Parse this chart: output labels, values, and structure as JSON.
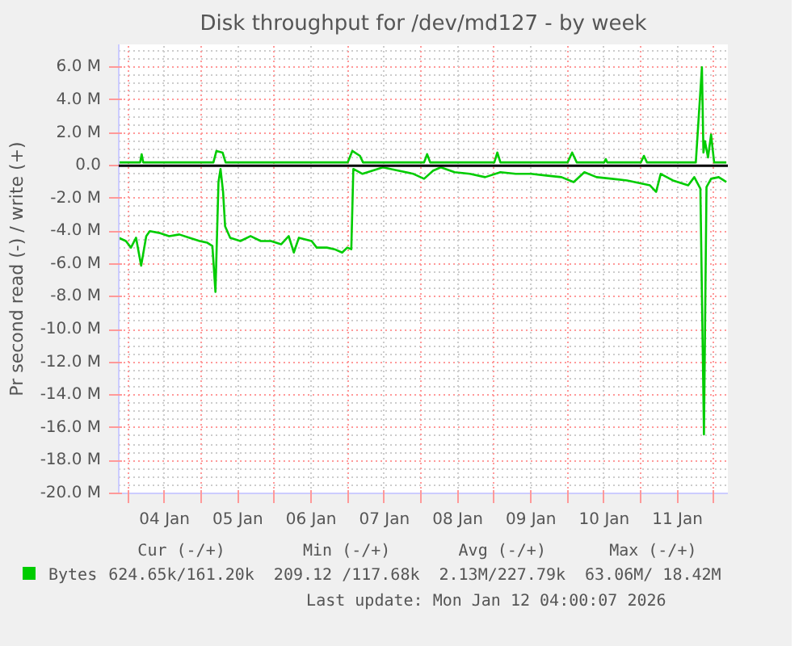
{
  "chart_data": {
    "type": "line",
    "title": "Disk throughput for /dev/md127 - by week",
    "ylabel": "Pr second read (-) / write (+)",
    "xlim": [
      "2026-01-03T21:00",
      "2026-01-12T04:30"
    ],
    "xticks": [
      {
        "value": "2026-01-04T00:00",
        "label": null
      },
      {
        "value": "2026-01-04T12:00",
        "label": "04 Jan"
      },
      {
        "value": "2026-01-05T00:00",
        "label": null
      },
      {
        "value": "2026-01-05T12:00",
        "label": "05 Jan"
      },
      {
        "value": "2026-01-06T00:00",
        "label": null
      },
      {
        "value": "2026-01-06T12:00",
        "label": "06 Jan"
      },
      {
        "value": "2026-01-07T00:00",
        "label": null
      },
      {
        "value": "2026-01-07T12:00",
        "label": "07 Jan"
      },
      {
        "value": "2026-01-08T00:00",
        "label": null
      },
      {
        "value": "2026-01-08T12:00",
        "label": "08 Jan"
      },
      {
        "value": "2026-01-09T00:00",
        "label": null
      },
      {
        "value": "2026-01-09T12:00",
        "label": "09 Jan"
      },
      {
        "value": "2026-01-10T00:00",
        "label": null
      },
      {
        "value": "2026-01-10T12:00",
        "label": "10 Jan"
      },
      {
        "value": "2026-01-11T00:00",
        "label": null
      },
      {
        "value": "2026-01-11T12:00",
        "label": "11 Jan"
      },
      {
        "value": "2026-01-12T00:00",
        "label": null
      }
    ],
    "ylim": [
      -20,
      7.4
    ],
    "yticks": [
      {
        "value": -20,
        "label": "-20.0 M"
      },
      {
        "value": -18,
        "label": "-18.0 M"
      },
      {
        "value": -16,
        "label": "-16.0 M"
      },
      {
        "value": -14,
        "label": "-14.0 M"
      },
      {
        "value": -12,
        "label": "-12.0 M"
      },
      {
        "value": -10,
        "label": "-10.0 M"
      },
      {
        "value": -8,
        "label": "-8.0 M"
      },
      {
        "value": -6,
        "label": "-6.0 M"
      },
      {
        "value": -4,
        "label": "-4.0 M"
      },
      {
        "value": -2,
        "label": "-2.0 M"
      },
      {
        "value": 0,
        "label": "0.0"
      },
      {
        "value": 2,
        "label": "2.0 M"
      },
      {
        "value": 4,
        "label": "4.0 M"
      },
      {
        "value": 6,
        "label": "6.0 M"
      }
    ],
    "grid": true,
    "legend": "bottom",
    "marker": "none",
    "line_style": "solid",
    "ref_lines": [
      {
        "axis": "y",
        "value": 0,
        "color": "#000000"
      }
    ],
    "series": [
      {
        "color": "#00cc00",
        "x": [
          "2026-01-03T21:00",
          "2026-01-03T23:20",
          "2026-01-04T01:00",
          "2026-01-04T02:40",
          "2026-01-04T04:20",
          "2026-01-04T06:00",
          "2026-01-04T07:10",
          "2026-01-04T10:10",
          "2026-01-04T13:30",
          "2026-01-04T16:50",
          "2026-01-04T20:10",
          "2026-01-04T23:30",
          "2026-01-05T02:00",
          "2026-01-05T03:40",
          "2026-01-05T04:40",
          "2026-01-05T05:40",
          "2026-01-05T06:20",
          "2026-01-05T07:10",
          "2026-01-05T07:50",
          "2026-01-05T09:30",
          "2026-01-05T12:50",
          "2026-01-05T16:10",
          "2026-01-05T19:30",
          "2026-01-05T22:50",
          "2026-01-06T02:10",
          "2026-01-06T04:40",
          "2026-01-06T06:20",
          "2026-01-06T08:00",
          "2026-01-06T12:10",
          "2026-01-06T13:50",
          "2026-01-06T17:10",
          "2026-01-06T19:40",
          "2026-01-06T22:10",
          "2026-01-06T23:50",
          "2026-01-07T01:10",
          "2026-01-07T01:50",
          "2026-01-07T04:50",
          "2026-01-07T11:30",
          "2026-01-07T16:30",
          "2026-01-07T21:30",
          "2026-01-08T01:00",
          "2026-01-08T04:00",
          "2026-01-08T06:30",
          "2026-01-08T11:00",
          "2026-01-08T16:00",
          "2026-01-08T21:00",
          "2026-01-09T02:00",
          "2026-01-09T07:00",
          "2026-01-09T12:00",
          "2026-01-09T17:00",
          "2026-01-09T22:00",
          "2026-01-10T02:00",
          "2026-01-10T05:30",
          "2026-01-10T09:30",
          "2026-01-10T14:30",
          "2026-01-10T19:30",
          "2026-01-11T00:30",
          "2026-01-11T03:00",
          "2026-01-11T05:00",
          "2026-01-11T06:30",
          "2026-01-11T10:30",
          "2026-01-11T15:30",
          "2026-01-11T17:30",
          "2026-01-11T19:30",
          "2026-01-11T20:40",
          "2026-01-11T21:30",
          "2026-01-11T23:00",
          "2026-01-12T01:30",
          "2026-01-12T04:00"
        ],
        "values": [
          -4.4,
          -4.6,
          -5.0,
          -4.4,
          -6.1,
          -4.3,
          -4.0,
          -4.1,
          -4.3,
          -4.2,
          -4.4,
          -4.6,
          -4.7,
          -4.9,
          -7.7,
          -1.0,
          -0.2,
          -1.6,
          -3.7,
          -4.4,
          -4.6,
          -4.3,
          -4.6,
          -4.6,
          -4.8,
          -4.3,
          -5.3,
          -4.4,
          -4.6,
          -5.0,
          -5.0,
          -5.1,
          -5.3,
          -5.0,
          -5.1,
          -0.2,
          -0.5,
          -0.1,
          -0.3,
          -0.5,
          -0.8,
          -0.3,
          -0.1,
          -0.4,
          -0.5,
          -0.7,
          -0.4,
          -0.5,
          -0.5,
          -0.6,
          -0.7,
          -1.0,
          -0.4,
          -0.7,
          -0.8,
          -0.9,
          -1.1,
          -1.2,
          -1.6,
          -0.5,
          -0.9,
          -1.2,
          -0.7,
          -1.4,
          -16.4,
          -1.3,
          -0.8,
          -0.7,
          -1.0
        ]
      },
      {
        "name": "Bytes",
        "color": "#00cc00",
        "x": [
          "2026-01-03T21:00",
          "2026-01-04T04:00",
          "2026-01-04T04:30",
          "2026-01-04T05:00",
          "2026-01-05T04:00",
          "2026-01-05T05:00",
          "2026-01-05T07:00",
          "2026-01-05T08:00",
          "2026-01-07T00:00",
          "2026-01-07T01:30",
          "2026-01-07T04:00",
          "2026-01-07T05:00",
          "2026-01-08T01:00",
          "2026-01-08T02:00",
          "2026-01-08T03:00",
          "2026-01-09T00:00",
          "2026-01-09T01:00",
          "2026-01-09T02:00",
          "2026-01-10T00:00",
          "2026-01-10T01:30",
          "2026-01-10T03:00",
          "2026-01-10T12:00",
          "2026-01-10T12:30",
          "2026-01-10T13:00",
          "2026-01-11T00:00",
          "2026-01-11T01:00",
          "2026-01-11T02:00",
          "2026-01-11T18:00",
          "2026-01-11T20:00",
          "2026-01-11T20:30",
          "2026-01-11T21:00",
          "2026-01-11T22:00",
          "2026-01-11T23:00",
          "2026-01-12T00:00",
          "2026-01-12T04:00"
        ],
        "values": [
          0.2,
          0.2,
          0.7,
          0.2,
          0.2,
          0.9,
          0.8,
          0.2,
          0.2,
          0.9,
          0.6,
          0.2,
          0.2,
          0.7,
          0.2,
          0.2,
          0.8,
          0.2,
          0.2,
          0.8,
          0.2,
          0.2,
          0.4,
          0.2,
          0.2,
          0.6,
          0.2,
          0.2,
          6.0,
          0.8,
          1.5,
          0.5,
          1.9,
          0.2,
          0.2
        ]
      }
    ],
    "annotations": [
      "Cur (-/+)",
      "Min (-/+)",
      "Avg (-/+)",
      "Max (-/+)",
      "624.65k/161.20k",
      "209.12 /117.68k",
      "2.13M/227.79k",
      "63.06M/ 18.42M",
      "Last update: Mon Jan 12 04:00:07 2026"
    ]
  }
}
